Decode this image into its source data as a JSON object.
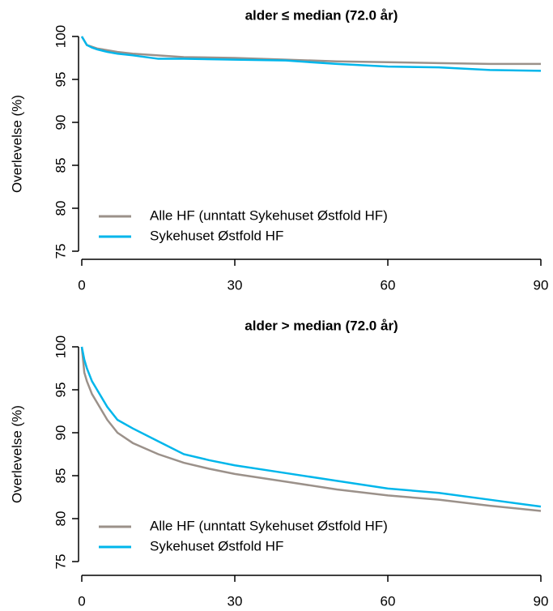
{
  "chart_data": [
    {
      "type": "line",
      "title": "alder ≤ median (72.0 år)",
      "ylabel": "Overlevelse (%)",
      "x": [
        0,
        1,
        2,
        3,
        5,
        7,
        10,
        15,
        20,
        30,
        40,
        50,
        60,
        70,
        80,
        90
      ],
      "series": [
        {
          "name": "Alle HF (unntatt Sykehuset Østfold HF)",
          "color": "#9b918a",
          "values": [
            100,
            99,
            98.8,
            98.6,
            98.4,
            98.2,
            98,
            97.8,
            97.6,
            97.5,
            97.3,
            97.1,
            97,
            96.9,
            96.8,
            96.8
          ]
        },
        {
          "name": "Sykehuset Østfold HF",
          "color": "#00b6eb",
          "values": [
            100,
            99,
            98.7,
            98.5,
            98.2,
            98,
            97.8,
            97.4,
            97.4,
            97.3,
            97.2,
            96.8,
            96.5,
            96.4,
            96.1,
            96.0
          ]
        }
      ],
      "xlim": [
        0,
        90
      ],
      "xticks": [
        0,
        30,
        60,
        90
      ],
      "ylim": [
        75,
        100
      ],
      "yticks": [
        75,
        80,
        85,
        90,
        95,
        100
      ],
      "legend": "bottom-left"
    },
    {
      "type": "line",
      "title": "alder > median (72.0 år)",
      "ylabel": "Overlevelse (%)",
      "x": [
        0,
        0.5,
        1,
        2,
        3,
        5,
        7,
        10,
        15,
        20,
        25,
        30,
        40,
        50,
        60,
        70,
        80,
        90
      ],
      "series": [
        {
          "name": "Alle HF (unntatt Sykehuset Østfold HF)",
          "color": "#9b918a",
          "values": [
            100,
            97,
            96,
            94.5,
            93.5,
            91.5,
            90,
            88.8,
            87.5,
            86.5,
            85.8,
            85.2,
            84.3,
            83.4,
            82.7,
            82.2,
            81.5,
            80.9
          ]
        },
        {
          "name": "Sykehuset Østfold HF",
          "color": "#00b6eb",
          "values": [
            100,
            98.5,
            97.5,
            96,
            95,
            93,
            91.5,
            90.5,
            89,
            87.5,
            86.8,
            86.2,
            85.3,
            84.4,
            83.5,
            83.0,
            82.2,
            81.4
          ]
        }
      ],
      "xlim": [
        0,
        90
      ],
      "xticks": [
        0,
        30,
        60,
        90
      ],
      "ylim": [
        75,
        100
      ],
      "yticks": [
        75,
        80,
        85,
        90,
        95,
        100
      ],
      "legend": "bottom-left"
    }
  ]
}
